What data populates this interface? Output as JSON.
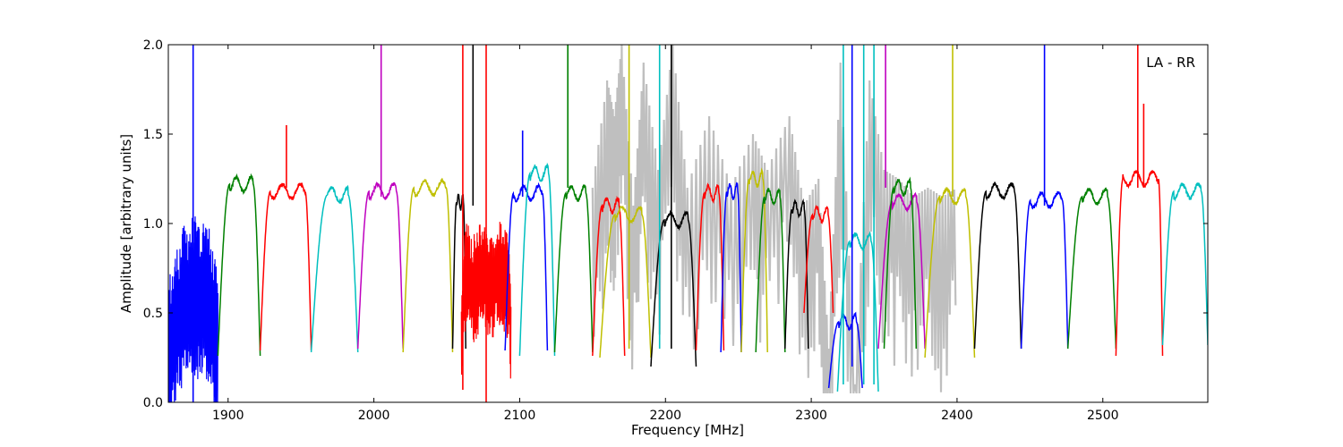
{
  "chart_data": {
    "type": "line",
    "title": "",
    "xlabel": "Frequency [MHz]",
    "ylabel": "Amplitude [arbitrary units]",
    "annotation": "LA - RR",
    "xlim": [
      1859,
      2572
    ],
    "ylim": [
      0.0,
      2.0
    ],
    "xticks": [
      1900,
      2000,
      2100,
      2200,
      2300,
      2400,
      2500
    ],
    "xtick_labels": [
      "1900",
      "2000",
      "2100",
      "2200",
      "2300",
      "2400",
      "2500"
    ],
    "yticks": [
      0.0,
      0.5,
      1.0,
      1.5,
      2.0
    ],
    "ytick_labels": [
      "0.0",
      "0.5",
      "1.0",
      "1.5",
      "2.0"
    ],
    "grid": false,
    "background_series_color": "#bfbfbf",
    "background_series": [
      {
        "x": [
          2150,
          2160,
          2165,
          2170,
          2178,
          2185,
          2195,
          2205,
          2215,
          2230,
          2245,
          2260,
          2270,
          2285,
          2295,
          2305,
          2312,
          2320,
          2330,
          2340,
          2350,
          2360,
          2370,
          2380,
          2390,
          2400
        ],
        "y": [
          1.2,
          1.8,
          1.6,
          2.0,
          1.1,
          1.9,
          1.3,
          2.0,
          1.2,
          1.6,
          1.2,
          1.5,
          1.3,
          1.6,
          1.1,
          1.25,
          0.3,
          1.9,
          0.1,
          1.8,
          1.3,
          1.25,
          1.15,
          1.2,
          1.15,
          1.2
        ]
      }
    ],
    "bands": [
      {
        "color": "#0000ff",
        "x0": 1859,
        "x1": 1893,
        "rise": 0.5,
        "plateau": 0.6,
        "bottom": 0.25,
        "noise": 0.45
      },
      {
        "color": "#008000",
        "x0": 1893,
        "x1": 1922,
        "rise": 0.28,
        "plateau": 1.22,
        "bottom": 0.26
      },
      {
        "color": "#ff0000",
        "x0": 1922,
        "x1": 1957,
        "rise": 0.2,
        "plateau": 1.18,
        "bottom": 0.29
      },
      {
        "color": "#00bfbf",
        "x0": 1957,
        "x1": 1989,
        "rise": 0.35,
        "plateau": 1.16,
        "bottom": 0.28
      },
      {
        "color": "#bf00bf",
        "x0": 1989,
        "x1": 2020,
        "rise": 0.25,
        "plateau": 1.18,
        "bottom": 0.3
      },
      {
        "color": "#bfbf00",
        "x0": 2020,
        "x1": 2054,
        "rise": 0.22,
        "plateau": 1.2,
        "bottom": 0.28
      },
      {
        "color": "#000000",
        "x0": 2054,
        "x1": 2063,
        "rise": 0.3,
        "plateau": 1.12,
        "bottom": 0.3
      },
      {
        "color": "#ff0000",
        "x0": 2060,
        "x1": 2094,
        "rise": 0.1,
        "plateau": 0.68,
        "bottom": 0.35,
        "noise": 0.3
      },
      {
        "color": "#0000ff",
        "x0": 2090,
        "x1": 2119,
        "rise": 0.2,
        "plateau": 1.17,
        "bottom": 0.29
      },
      {
        "color": "#00bfbf",
        "x0": 2100,
        "x1": 2124,
        "rise": 0.3,
        "plateau": 1.28,
        "bottom": 0.26
      },
      {
        "color": "#008000",
        "x0": 2124,
        "x1": 2150,
        "rise": 0.3,
        "plateau": 1.17,
        "bottom": 0.28
      },
      {
        "color": "#ff0000",
        "x0": 2150,
        "x1": 2172,
        "rise": 0.3,
        "plateau": 1.1,
        "bottom": 0.26
      },
      {
        "color": "#bfbf00",
        "x0": 2155,
        "x1": 2190,
        "rise": 0.3,
        "plateau": 1.05,
        "bottom": 0.25
      },
      {
        "color": "#000000",
        "x0": 2190,
        "x1": 2221,
        "rise": 0.3,
        "plateau": 1.02,
        "bottom": 0.2
      },
      {
        "color": "#ff0000",
        "x0": 2221,
        "x1": 2240,
        "rise": 0.3,
        "plateau": 1.17,
        "bottom": 0.29
      },
      {
        "color": "#0000ff",
        "x0": 2238,
        "x1": 2252,
        "rise": 0.3,
        "plateau": 1.18,
        "bottom": 0.28
      },
      {
        "color": "#bfbf00",
        "x0": 2252,
        "x1": 2270,
        "rise": 0.3,
        "plateau": 1.25,
        "bottom": 0.28
      },
      {
        "color": "#008000",
        "x0": 2262,
        "x1": 2282,
        "rise": 0.3,
        "plateau": 1.15,
        "bottom": 0.28
      },
      {
        "color": "#000000",
        "x0": 2282,
        "x1": 2298,
        "rise": 0.3,
        "plateau": 1.08,
        "bottom": 0.3
      },
      {
        "color": "#ff0000",
        "x0": 2295,
        "x1": 2315,
        "rise": 0.3,
        "plateau": 1.05,
        "bottom": 0.5
      },
      {
        "color": "#0000ff",
        "x0": 2312,
        "x1": 2335,
        "rise": 0.3,
        "plateau": 0.45,
        "bottom": 0.08
      },
      {
        "color": "#00bfbf",
        "x0": 2318,
        "x1": 2346,
        "rise": 0.3,
        "plateau": 0.9,
        "bottom": 0.06
      },
      {
        "color": "#bf00bf",
        "x0": 2346,
        "x1": 2378,
        "rise": 0.3,
        "plateau": 1.12,
        "bottom": 0.3
      },
      {
        "color": "#008000",
        "x0": 2350,
        "x1": 2372,
        "rise": 0.3,
        "plateau": 1.2,
        "bottom": 0.3
      },
      {
        "color": "#bfbf00",
        "x0": 2378,
        "x1": 2412,
        "rise": 0.3,
        "plateau": 1.15,
        "bottom": 0.25
      },
      {
        "color": "#000000",
        "x0": 2412,
        "x1": 2444,
        "rise": 0.25,
        "plateau": 1.18,
        "bottom": 0.3
      },
      {
        "color": "#0000ff",
        "x0": 2444,
        "x1": 2476,
        "rise": 0.2,
        "plateau": 1.13,
        "bottom": 0.3
      },
      {
        "color": "#008000",
        "x0": 2476,
        "x1": 2509,
        "rise": 0.3,
        "plateau": 1.15,
        "bottom": 0.3
      },
      {
        "color": "#ff0000",
        "x0": 2509,
        "x1": 2541,
        "rise": 0.15,
        "plateau": 1.25,
        "bottom": 0.26
      },
      {
        "color": "#00bfbf",
        "x0": 2541,
        "x1": 2572,
        "rise": 0.25,
        "plateau": 1.18,
        "bottom": 0.32
      }
    ],
    "spikes": [
      {
        "color": "#0000ff",
        "x": 1876,
        "y0": 0.0,
        "y1": 2.0
      },
      {
        "color": "#ff0000",
        "x": 1940,
        "y0": 1.2,
        "y1": 1.55
      },
      {
        "color": "#bf00bf",
        "x": 2005,
        "y0": 1.15,
        "y1": 2.0
      },
      {
        "color": "#ff0000",
        "x": 2061,
        "y0": 0.07,
        "y1": 2.0
      },
      {
        "color": "#000000",
        "x": 2068,
        "y0": 1.1,
        "y1": 2.0
      },
      {
        "color": "#ff0000",
        "x": 2077,
        "y0": 0.0,
        "y1": 2.0
      },
      {
        "color": "#0000ff",
        "x": 2102,
        "y0": 1.15,
        "y1": 1.52
      },
      {
        "color": "#008000",
        "x": 2133,
        "y0": 1.2,
        "y1": 2.0
      },
      {
        "color": "#bfbf00",
        "x": 2397,
        "y0": 1.15,
        "y1": 2.0
      },
      {
        "color": "#0000ff",
        "x": 2460,
        "y0": 1.1,
        "y1": 2.0
      },
      {
        "color": "#ff0000",
        "x": 2524,
        "y0": 1.2,
        "y1": 2.0
      },
      {
        "color": "#ff0000",
        "x": 2528,
        "y0": 1.2,
        "y1": 1.67
      },
      {
        "color": "#00bfbf",
        "x": 2322,
        "y0": 0.1,
        "y1": 2.0
      },
      {
        "color": "#0000ff",
        "x": 2328,
        "y0": 0.2,
        "y1": 2.0
      },
      {
        "color": "#00bfbf",
        "x": 2336,
        "y0": 0.1,
        "y1": 2.0
      },
      {
        "color": "#00bfbf",
        "x": 2343,
        "y0": 0.1,
        "y1": 2.0
      },
      {
        "color": "#bf00bf",
        "x": 2351,
        "y0": 1.2,
        "y1": 2.0
      },
      {
        "color": "#bfbf00",
        "x": 2175,
        "y0": 0.3,
        "y1": 2.0
      },
      {
        "color": "#00bfbf",
        "x": 2196,
        "y0": 0.3,
        "y1": 2.0
      },
      {
        "color": "#000000",
        "x": 2204,
        "y0": 0.3,
        "y1": 2.0
      }
    ]
  }
}
